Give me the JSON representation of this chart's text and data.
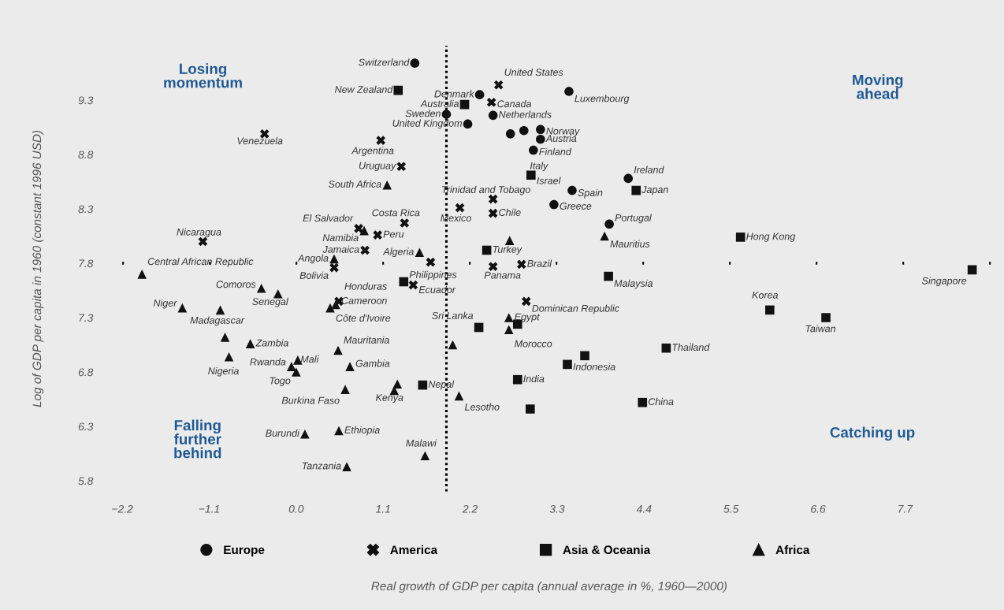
{
  "chart_data": {
    "type": "scatter",
    "ylabel": "Log of GDP per capita in 1960 (constant 1996 USD)",
    "xlim": [
      -2.4,
      8.8
    ],
    "ylim": [
      5.7,
      9.8
    ],
    "xticks": [
      {
        "value": -2.2,
        "label": "−2.2"
      },
      {
        "value": -1.1,
        "label": "−1.1"
      },
      {
        "value": 0,
        "label": "0.0"
      },
      1.1,
      2.2,
      3.3,
      4.4,
      5.5,
      6.6,
      7.7
    ],
    "yticks": [
      5.8,
      6.3,
      6.8,
      7.3,
      7.8,
      8.3,
      8.8,
      9.3
    ],
    "grid": false,
    "legend": "bottom",
    "ref_lines": [
      {
        "axis": "x",
        "value": 1.9,
        "color": "#000000",
        "line_style": "dotted"
      },
      {
        "axis": "y",
        "value": 7.8,
        "color": "#000000",
        "line_style": "dotted"
      }
    ],
    "series": [
      {
        "name": "Europe",
        "color": "#111111",
        "marker": "circle",
        "x": [
          1.5,
          2.32,
          3.45,
          1.9,
          2.49,
          2.17,
          3.09,
          2.71,
          2.88,
          3.09,
          3.0,
          4.2,
          3.49,
          3.26,
          3.96
        ],
        "values": [
          9.64,
          9.35,
          9.38,
          9.17,
          9.16,
          9.08,
          9.03,
          8.99,
          9.02,
          8.94,
          8.84,
          8.58,
          8.47,
          8.34,
          8.16
        ]
      },
      {
        "name": "America",
        "color": "#111111",
        "marker": "cross",
        "x": [
          2.56,
          2.47,
          -0.4,
          1.07,
          1.33,
          2.49,
          2.07,
          2.49,
          1.37,
          0.79,
          1.03,
          0.87,
          1.7,
          0.48,
          1.48,
          2.49,
          2.85,
          0.54,
          2.91,
          -1.18
        ],
        "values": [
          9.44,
          9.28,
          8.99,
          8.93,
          8.69,
          8.39,
          8.31,
          8.26,
          8.17,
          8.12,
          8.06,
          7.92,
          7.81,
          7.76,
          7.6,
          7.77,
          7.79,
          7.45,
          7.45,
          8.0
        ]
      },
      {
        "name": "Asia & Oceania",
        "color": "#111111",
        "marker": "square",
        "x": [
          1.29,
          2.13,
          2.97,
          4.3,
          5.62,
          2.41,
          3.95,
          8.55,
          5.99,
          6.7,
          4.68,
          3.65,
          3.43,
          2.8,
          2.31,
          2.8,
          1.6,
          2.96,
          4.38,
          1.36
        ],
        "values": [
          9.39,
          9.26,
          8.61,
          8.47,
          8.04,
          7.92,
          7.68,
          7.74,
          7.37,
          7.3,
          7.02,
          6.95,
          6.87,
          6.73,
          7.21,
          7.24,
          6.68,
          6.46,
          6.52,
          7.63
        ]
      },
      {
        "name": "Africa",
        "color": "#111111",
        "marker": "triangle",
        "x": [
          -1.95,
          -0.44,
          -0.23,
          -1.44,
          -0.96,
          -0.9,
          -0.58,
          -0.85,
          0.02,
          -0.06,
          0.0,
          0.53,
          0.68,
          0.62,
          1.28,
          1.24,
          0.11,
          0.54,
          0.64,
          1.63,
          1.15,
          1.56,
          3.9,
          2.7,
          2.69,
          2.69,
          1.98,
          2.06,
          0.86,
          0.48,
          0.5,
          0.43
        ],
        "values": [
          7.7,
          7.57,
          7.52,
          7.39,
          7.37,
          7.12,
          7.06,
          6.94,
          6.91,
          6.85,
          6.8,
          7.0,
          6.85,
          6.64,
          6.69,
          6.63,
          6.23,
          6.26,
          5.93,
          6.03,
          8.52,
          7.9,
          8.05,
          8.01,
          7.3,
          7.19,
          7.05,
          6.58,
          8.1,
          7.84,
          7.42,
          7.39
        ]
      }
    ],
    "annotations": [
      "Losing momentum",
      "Moving ahead",
      "Falling further behind",
      "Catching up",
      "Real growth of GDP per capita (annual average in %, 1960—2000)",
      {
        "text": "Switzerland",
        "x": 1.5,
        "y": 9.64
      },
      {
        "text": "New Zealand",
        "x": 1.29,
        "y": 9.39
      },
      {
        "text": "Denmark",
        "x": 2.32,
        "y": 9.35
      },
      {
        "text": "Australia",
        "x": 2.13,
        "y": 9.26
      },
      {
        "text": "Sweden",
        "x": 1.9,
        "y": 9.17
      },
      {
        "text": "United Kingdom",
        "x": 2.17,
        "y": 9.08
      },
      {
        "text": "United States",
        "x": 2.56,
        "y": 9.44
      },
      {
        "text": "Canada",
        "x": 2.47,
        "y": 9.28
      },
      {
        "text": "Netherlands",
        "x": 2.49,
        "y": 9.16
      },
      {
        "text": "Luxembourg",
        "x": 3.45,
        "y": 9.38
      },
      {
        "text": "Norway",
        "x": 3.09,
        "y": 9.03
      },
      {
        "text": "Austria",
        "x": 3.09,
        "y": 8.94
      },
      {
        "text": "Finland",
        "x": 3.0,
        "y": 8.84
      },
      {
        "text": "Italy",
        "x": 2.97,
        "y": 8.61
      },
      {
        "text": "Israel",
        "x": 2.97,
        "y": 8.61
      },
      {
        "text": "Ireland",
        "x": 4.2,
        "y": 8.58
      },
      {
        "text": "Japan",
        "x": 4.3,
        "y": 8.47
      },
      {
        "text": "Spain",
        "x": 3.49,
        "y": 8.47
      },
      {
        "text": "Greece",
        "x": 3.26,
        "y": 8.34
      },
      {
        "text": "Portugal",
        "x": 3.96,
        "y": 8.16
      },
      {
        "text": "Mauritius",
        "x": 3.9,
        "y": 8.05
      },
      {
        "text": "Hong Kong",
        "x": 5.62,
        "y": 8.04
      },
      {
        "text": "Trinidad and Tobago",
        "x": 2.49,
        "y": 8.39
      },
      {
        "text": "Chile",
        "x": 2.49,
        "y": 8.26
      },
      {
        "text": "Mexico",
        "x": 2.07,
        "y": 8.31
      },
      {
        "text": "Turkey",
        "x": 2.41,
        "y": 7.92
      },
      {
        "text": "Brazil",
        "x": 2.85,
        "y": 7.79
      },
      {
        "text": "Panama",
        "x": 2.49,
        "y": 7.77
      },
      {
        "text": "Philippines",
        "x": 1.36,
        "y": 7.63
      },
      {
        "text": "Ecuador",
        "x": 1.48,
        "y": 7.6
      },
      {
        "text": "Malaysia",
        "x": 3.95,
        "y": 7.68
      },
      {
        "text": "Singapore",
        "x": 8.55,
        "y": 7.74
      },
      {
        "text": "Korea",
        "x": 5.99,
        "y": 7.37
      },
      {
        "text": "Taiwan",
        "x": 6.7,
        "y": 7.3
      },
      {
        "text": "Dominican Republic",
        "x": 2.91,
        "y": 7.45
      },
      {
        "text": "Sri Lanka",
        "x": 2.31,
        "y": 7.21
      },
      {
        "text": "Egypt",
        "x": 2.69,
        "y": 7.3
      },
      {
        "text": "Morocco",
        "x": 2.69,
        "y": 7.19
      },
      {
        "text": "Thailand",
        "x": 4.68,
        "y": 7.02
      },
      {
        "text": "Indonesia",
        "x": 3.43,
        "y": 6.87
      },
      {
        "text": "India",
        "x": 2.8,
        "y": 6.73
      },
      {
        "text": "Nepal",
        "x": 1.6,
        "y": 6.68
      },
      {
        "text": "Lesotho",
        "x": 2.06,
        "y": 6.58
      },
      {
        "text": "China",
        "x": 4.38,
        "y": 6.52
      },
      {
        "text": "Venezuela",
        "x": -0.4,
        "y": 8.99
      },
      {
        "text": "Argentina",
        "x": 1.07,
        "y": 8.93
      },
      {
        "text": "Uruguay",
        "x": 1.33,
        "y": 8.69
      },
      {
        "text": "South Africa",
        "x": 1.15,
        "y": 8.52
      },
      {
        "text": "Costa Rica",
        "x": 1.37,
        "y": 8.17
      },
      {
        "text": "El Salvador",
        "x": 0.79,
        "y": 8.12
      },
      {
        "text": "Nicaragua",
        "x": -1.18,
        "y": 8.0
      },
      {
        "text": "Peru",
        "x": 1.03,
        "y": 8.06
      },
      {
        "text": "Namibia",
        "x": 0.86,
        "y": 8.1
      },
      {
        "text": "Jamaica",
        "x": 0.87,
        "y": 7.92
      },
      {
        "text": "Algeria",
        "x": 1.56,
        "y": 7.9
      },
      {
        "text": "Angola",
        "x": 0.48,
        "y": 7.84
      },
      {
        "text": "Central African Republic",
        "x": -1.95,
        "y": 7.7
      },
      {
        "text": "Bolivia",
        "x": 0.48,
        "y": 7.76
      },
      {
        "text": "Comoros",
        "x": -0.44,
        "y": 7.57
      },
      {
        "text": "Honduras",
        "x": 0.54,
        "y": 7.45
      },
      {
        "text": "Senegal",
        "x": -0.23,
        "y": 7.52
      },
      {
        "text": "Niger",
        "x": -1.44,
        "y": 7.39
      },
      {
        "text": "Cameroon",
        "x": 0.5,
        "y": 7.42
      },
      {
        "text": "Madagascar",
        "x": -0.96,
        "y": 7.37
      },
      {
        "text": "Côte d'Ivoire",
        "x": 0.43,
        "y": 7.39
      },
      {
        "text": "Zambia",
        "x": -0.58,
        "y": 7.06
      },
      {
        "text": "Mauritania",
        "x": 0.53,
        "y": 7.0
      },
      {
        "text": "Rwanda",
        "x": -0.06,
        "y": 6.85
      },
      {
        "text": "Mali",
        "x": 0.02,
        "y": 6.91
      },
      {
        "text": "Nigeria",
        "x": -0.85,
        "y": 6.94
      },
      {
        "text": "Gambia",
        "x": 0.68,
        "y": 6.85
      },
      {
        "text": "Togo",
        "x": 0.0,
        "y": 6.8
      },
      {
        "text": "Burkina Faso",
        "x": 0.62,
        "y": 6.64
      },
      {
        "text": "Kenya",
        "x": 1.24,
        "y": 6.63
      },
      {
        "text": "Burundi",
        "x": 0.11,
        "y": 6.23
      },
      {
        "text": "Ethiopia",
        "x": 0.54,
        "y": 6.26
      },
      {
        "text": "Malawi",
        "x": 1.63,
        "y": 6.03
      },
      {
        "text": "Tanzania",
        "x": 0.64,
        "y": 5.93
      }
    ]
  }
}
